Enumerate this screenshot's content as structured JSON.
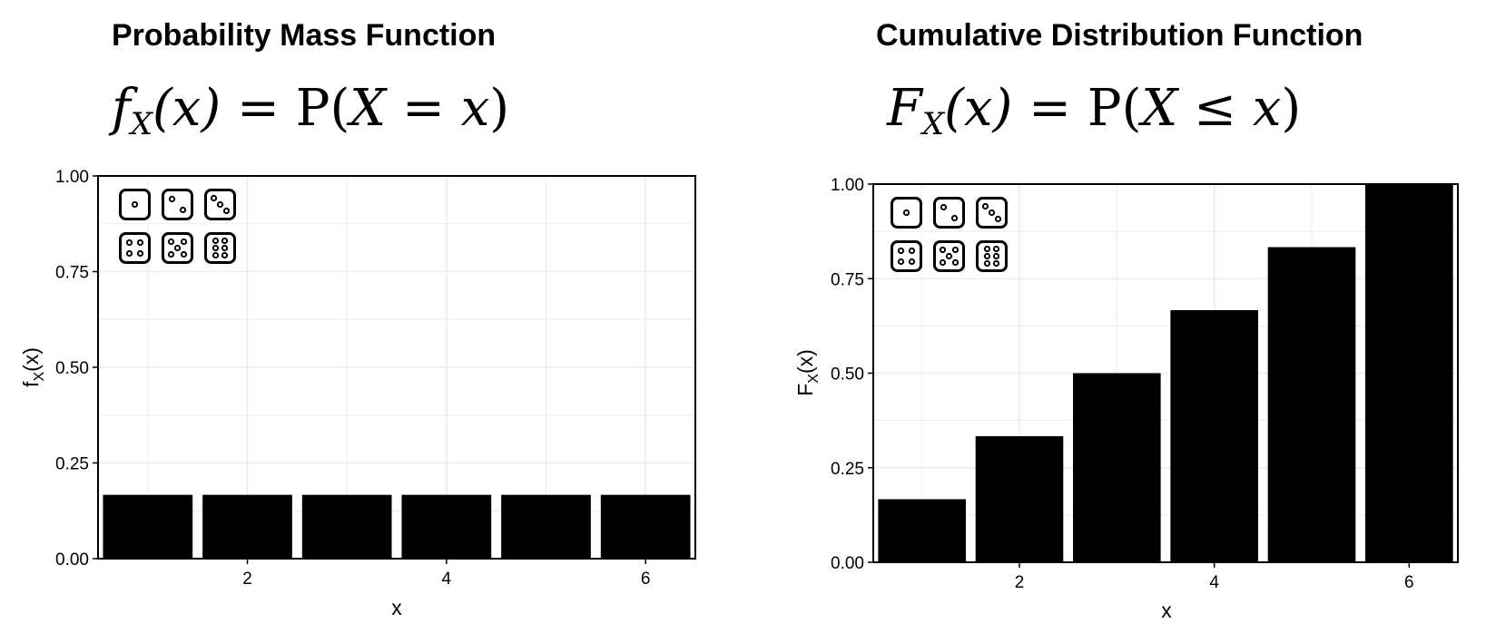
{
  "chart_data": [
    {
      "type": "bar",
      "title": "Probability Mass Function",
      "formula": {
        "fn": "f",
        "sub": "X",
        "arg": "(x)",
        "eq": " = P(",
        "var": "X",
        "rel": " = ",
        "x": "x",
        "close": ")"
      },
      "x": [
        1,
        2,
        3,
        4,
        5,
        6
      ],
      "values": [
        0.1667,
        0.1667,
        0.1667,
        0.1667,
        0.1667,
        0.1667
      ],
      "xlabel": "x",
      "ylabel": {
        "main": "f",
        "sub": "X",
        "rest": "(x)"
      },
      "xlim": [
        0.5,
        6.5
      ],
      "ylim": [
        0,
        1
      ],
      "xticks": [
        2,
        4,
        6
      ],
      "yticks": [
        0,
        0.25,
        0.5,
        0.75,
        1
      ],
      "ytick_labels": [
        "0.00",
        "0.25",
        "0.50",
        "0.75",
        "1.00"
      ],
      "grid": true,
      "icon": "dice-faces-icon"
    },
    {
      "type": "bar",
      "title": "Cumulative Distribution Function",
      "formula": {
        "fn": "F",
        "sub": "X",
        "arg": "(x)",
        "eq": " = P(",
        "var": "X",
        "rel": " ≤ ",
        "x": "x",
        "close": ")"
      },
      "x": [
        1,
        2,
        3,
        4,
        5,
        6
      ],
      "values": [
        0.1667,
        0.3333,
        0.5,
        0.6667,
        0.8333,
        1.0
      ],
      "xlabel": "x",
      "ylabel": {
        "main": "F",
        "sub": "X",
        "rest": "(x)"
      },
      "xlim": [
        0.5,
        6.5
      ],
      "ylim": [
        0,
        1
      ],
      "xticks": [
        2,
        4,
        6
      ],
      "yticks": [
        0,
        0.25,
        0.5,
        0.75,
        1
      ],
      "ytick_labels": [
        "0.00",
        "0.25",
        "0.50",
        "0.75",
        "1.00"
      ],
      "grid": true,
      "icon": "dice-faces-icon"
    }
  ],
  "colors": {
    "bar": "#000000",
    "grid": "#ebebeb",
    "frame": "#000000"
  }
}
